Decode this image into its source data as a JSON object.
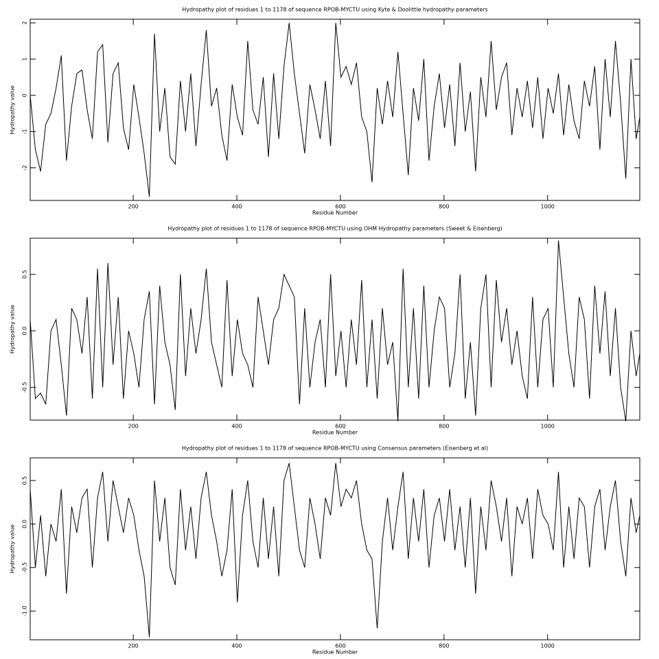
{
  "chart_data": [
    {
      "type": "line",
      "title": "Hydropathy plot of residues 1 to 1178 of sequence RPOB-MYCTU using Kyte & Doolittle hydropathy parameters",
      "x_label": "Residue Number",
      "y_label": "Hydropathy value",
      "xlim": [
        1,
        1178
      ],
      "xticks": [
        200,
        400,
        600,
        800,
        1000
      ],
      "ylim": [
        -2.9,
        2.1
      ],
      "yticks": [
        -2,
        -1,
        0,
        1,
        2
      ],
      "x": [
        1,
        11,
        21,
        31,
        41,
        51,
        61,
        71,
        81,
        91,
        101,
        111,
        121,
        131,
        141,
        151,
        161,
        171,
        181,
        191,
        201,
        211,
        221,
        231,
        241,
        251,
        261,
        271,
        281,
        291,
        301,
        311,
        321,
        331,
        341,
        351,
        361,
        371,
        381,
        391,
        401,
        411,
        421,
        431,
        441,
        451,
        461,
        471,
        481,
        491,
        501,
        511,
        521,
        531,
        541,
        551,
        561,
        571,
        581,
        591,
        601,
        611,
        621,
        631,
        641,
        651,
        661,
        671,
        681,
        691,
        701,
        711,
        721,
        731,
        741,
        751,
        761,
        771,
        781,
        791,
        801,
        811,
        821,
        831,
        841,
        851,
        861,
        871,
        881,
        891,
        901,
        911,
        921,
        931,
        941,
        951,
        961,
        971,
        981,
        991,
        1001,
        1011,
        1021,
        1031,
        1041,
        1051,
        1061,
        1071,
        1081,
        1091,
        1101,
        1111,
        1121,
        1131,
        1141,
        1151,
        1161,
        1171,
        1178
      ],
      "series": [
        {
          "color": "#000000",
          "values": [
            0,
            -1.5,
            -2.1,
            -0.8,
            -0.5,
            0.2,
            1.1,
            -1.8,
            -0.3,
            0.6,
            0.7,
            -0.4,
            -1.2,
            1.2,
            1.4,
            -1.3,
            0.6,
            0.9,
            -0.9,
            -1.5,
            0.3,
            -0.6,
            -1.6,
            -2.8,
            1.7,
            -1.0,
            0.2,
            -1.7,
            -1.9,
            0.4,
            -1.0,
            0.6,
            -1.4,
            0.3,
            1.8,
            -0.3,
            0.2,
            -1.1,
            -1.8,
            0.3,
            -0.6,
            -1.1,
            1.5,
            -0.4,
            -0.8,
            0.5,
            -1.7,
            0.6,
            -1.2,
            0.8,
            2.0,
            0.6,
            -0.5,
            -1.6,
            0.3,
            -0.4,
            -1.2,
            0.4,
            -1.4,
            2.0,
            0.5,
            0.8,
            0.3,
            0.9,
            -0.6,
            -1.0,
            -2.4,
            0.2,
            -0.8,
            0.4,
            -0.6,
            1.2,
            -0.5,
            -2.2,
            0.2,
            -0.7,
            1.0,
            -1.8,
            -0.3,
            0.6,
            -0.9,
            0.3,
            -1.4,
            0.9,
            -1.0,
            0.1,
            -2.1,
            0.5,
            -0.6,
            1.5,
            -0.4,
            0.5,
            0.9,
            -1.1,
            0.2,
            -0.6,
            0.4,
            -0.9,
            0.5,
            -1.2,
            0.2,
            -0.5,
            0.6,
            -1.1,
            0.3,
            -0.7,
            -1.2,
            0.4,
            -0.3,
            0.8,
            -1.5,
            1.0,
            -0.6,
            1.5,
            -0.2,
            -2.3,
            1.0,
            -1.2,
            -0.6
          ]
        }
      ]
    },
    {
      "type": "line",
      "title": "Hydropathy plot of residues 1 to 1178 of sequence RPOB-MYCTU using OHM  Hydropathy parameters (Sweet & Eisenberg)",
      "x_label": "Residue Number",
      "y_label": "Hydropathy value",
      "xlim": [
        1,
        1178
      ],
      "xticks": [
        200,
        400,
        600,
        800,
        1000
      ],
      "ylim": [
        -0.79,
        0.82
      ],
      "yticks": [
        -0.5,
        {
          "value": 0,
          "label": "0.0"
        },
        0.5
      ],
      "x": [
        1,
        11,
        21,
        31,
        41,
        51,
        61,
        71,
        81,
        91,
        101,
        111,
        121,
        131,
        141,
        151,
        161,
        171,
        181,
        191,
        201,
        211,
        221,
        231,
        241,
        251,
        261,
        271,
        281,
        291,
        301,
        311,
        321,
        331,
        341,
        351,
        361,
        371,
        381,
        391,
        401,
        411,
        421,
        431,
        441,
        451,
        461,
        471,
        481,
        491,
        501,
        511,
        521,
        531,
        541,
        551,
        561,
        571,
        581,
        591,
        601,
        611,
        621,
        631,
        641,
        651,
        661,
        671,
        681,
        691,
        701,
        711,
        721,
        731,
        741,
        751,
        761,
        771,
        781,
        791,
        801,
        811,
        821,
        831,
        841,
        851,
        861,
        871,
        881,
        891,
        901,
        911,
        921,
        931,
        941,
        951,
        961,
        971,
        981,
        991,
        1001,
        1011,
        1021,
        1031,
        1041,
        1051,
        1061,
        1071,
        1081,
        1091,
        1101,
        1111,
        1121,
        1131,
        1141,
        1151,
        1161,
        1171,
        1178
      ],
      "series": [
        {
          "color": "#000000",
          "values": [
            0.1,
            -0.6,
            -0.55,
            -0.65,
            0,
            0.1,
            -0.3,
            -0.75,
            0.2,
            0.1,
            -0.2,
            0.3,
            -0.6,
            0.55,
            -0.5,
            0.6,
            -0.3,
            0.3,
            -0.6,
            0.0,
            -0.2,
            -0.5,
            0.1,
            0.35,
            -0.65,
            0.4,
            -0.1,
            -0.3,
            -0.7,
            0.5,
            -0.4,
            0.2,
            -0.2,
            0.1,
            0.55,
            -0.1,
            -0.3,
            -0.5,
            0.45,
            -0.4,
            0.1,
            -0.2,
            -0.3,
            -0.5,
            0.3,
            0.0,
            -0.3,
            0.1,
            0.2,
            0.5,
            0.4,
            0.3,
            -0.65,
            0.2,
            -0.5,
            -0.1,
            0.1,
            -0.5,
            0.5,
            -0.4,
            0.0,
            -0.5,
            0.1,
            -0.3,
            0.45,
            -0.5,
            0.1,
            -0.6,
            0.2,
            -0.3,
            -0.1,
            -0.8,
            0.55,
            -0.5,
            0.2,
            -0.6,
            0.4,
            -0.5,
            0.0,
            0.3,
            0.2,
            -0.5,
            -0.2,
            0.5,
            -0.6,
            -0.1,
            -0.75,
            0.2,
            0.5,
            -0.5,
            0.45,
            -0.1,
            0.2,
            -0.3,
            0.0,
            -0.4,
            -0.6,
            0.3,
            -0.5,
            0.1,
            0.2,
            -0.5,
            0.8,
            0.3,
            -0.2,
            -0.5,
            0.3,
            0.1,
            -0.6,
            0.4,
            -0.2,
            0.35,
            -0.4,
            0.2,
            -0.5,
            -0.8,
            0.0,
            -0.4,
            -0.2
          ]
        }
      ]
    },
    {
      "type": "line",
      "title": "Hydropathy plot of residues 1 to 1178 of sequence RPOB-MYCTU using Consensus parameters (Eisenberg et al)",
      "x_label": "Residue Number",
      "y_label": "Hydropathy value",
      "xlim": [
        1,
        1178
      ],
      "xticks": [
        200,
        400,
        600,
        800,
        1000
      ],
      "ylim": [
        -1.33,
        0.76
      ],
      "yticks": [
        {
          "value": -1,
          "label": "-1.0"
        },
        -0.5,
        {
          "value": 0,
          "label": "0.0"
        },
        0.5
      ],
      "x": [
        1,
        11,
        21,
        31,
        41,
        51,
        61,
        71,
        81,
        91,
        101,
        111,
        121,
        131,
        141,
        151,
        161,
        171,
        181,
        191,
        201,
        211,
        221,
        231,
        241,
        251,
        261,
        271,
        281,
        291,
        301,
        311,
        321,
        331,
        341,
        351,
        361,
        371,
        381,
        391,
        401,
        411,
        421,
        431,
        441,
        451,
        461,
        471,
        481,
        491,
        501,
        511,
        521,
        531,
        541,
        551,
        561,
        571,
        581,
        591,
        601,
        611,
        621,
        631,
        641,
        651,
        661,
        671,
        681,
        691,
        701,
        711,
        721,
        731,
        741,
        751,
        761,
        771,
        781,
        791,
        801,
        811,
        821,
        831,
        841,
        851,
        861,
        871,
        881,
        891,
        901,
        911,
        921,
        931,
        941,
        951,
        961,
        971,
        981,
        991,
        1001,
        1011,
        1021,
        1031,
        1041,
        1051,
        1061,
        1071,
        1081,
        1091,
        1101,
        1111,
        1121,
        1131,
        1141,
        1151,
        1161,
        1171,
        1178
      ],
      "series": [
        {
          "color": "#000000",
          "values": [
            0.4,
            -0.5,
            0.1,
            -0.6,
            0.0,
            -0.2,
            0.4,
            -0.8,
            0.2,
            -0.1,
            0.3,
            0.4,
            -0.5,
            0.3,
            0.6,
            -0.2,
            0.5,
            0.2,
            -0.1,
            0.3,
            0.1,
            -0.3,
            -0.6,
            -1.3,
            0.5,
            -0.2,
            0.3,
            -0.5,
            -0.7,
            0.4,
            -0.3,
            0.2,
            -0.4,
            0.3,
            0.6,
            0.1,
            -0.2,
            -0.6,
            -0.3,
            0.4,
            -0.9,
            0.1,
            0.5,
            -0.2,
            -0.5,
            0.3,
            -0.4,
            0.2,
            -0.6,
            0.5,
            0.7,
            0.2,
            -0.3,
            -0.5,
            0.3,
            0.0,
            -0.4,
            0.3,
            0.1,
            0.7,
            0.2,
            0.4,
            0.3,
            0.5,
            0.0,
            -0.3,
            -0.4,
            -1.2,
            -0.2,
            0.3,
            -0.3,
            0.2,
            0.6,
            -0.4,
            0.3,
            -0.2,
            0.4,
            -0.5,
            0.1,
            0.3,
            -0.2,
            0.4,
            -0.3,
            0.2,
            -0.5,
            0.3,
            -0.8,
            0.2,
            -0.3,
            0.5,
            0.2,
            -0.2,
            0.3,
            -0.6,
            0.2,
            0.0,
            0.3,
            -0.4,
            0.4,
            0.1,
            0.0,
            -0.3,
            0.6,
            -0.5,
            0.2,
            -0.4,
            0.3,
            0.2,
            -0.5,
            0.2,
            0.4,
            -0.3,
            0.2,
            0.5,
            -0.2,
            -0.6,
            0.3,
            -0.1,
            0.1
          ]
        }
      ]
    }
  ]
}
